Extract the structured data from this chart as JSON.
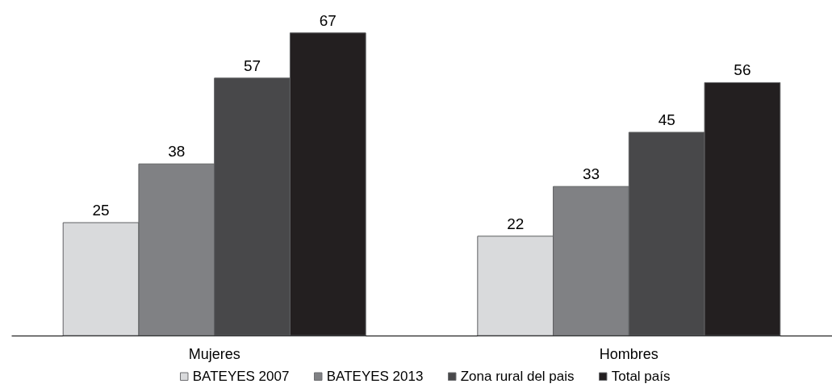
{
  "chart_data": {
    "type": "bar",
    "categories": [
      "Mujeres",
      "Hombres"
    ],
    "series": [
      {
        "name": "BATEYES 2007",
        "color": "#d9dadc",
        "values": [
          25,
          22
        ]
      },
      {
        "name": "BATEYES 2013",
        "color": "#808184",
        "values": [
          38,
          33
        ]
      },
      {
        "name": "Zona rural del pais",
        "color": "#48484a",
        "values": [
          57,
          45
        ]
      },
      {
        "name": "Total país",
        "color": "#231f20",
        "values": [
          67,
          56
        ]
      }
    ],
    "data_labels": true,
    "legend": "bottom",
    "grid": false,
    "tick_labels": "x"
  }
}
